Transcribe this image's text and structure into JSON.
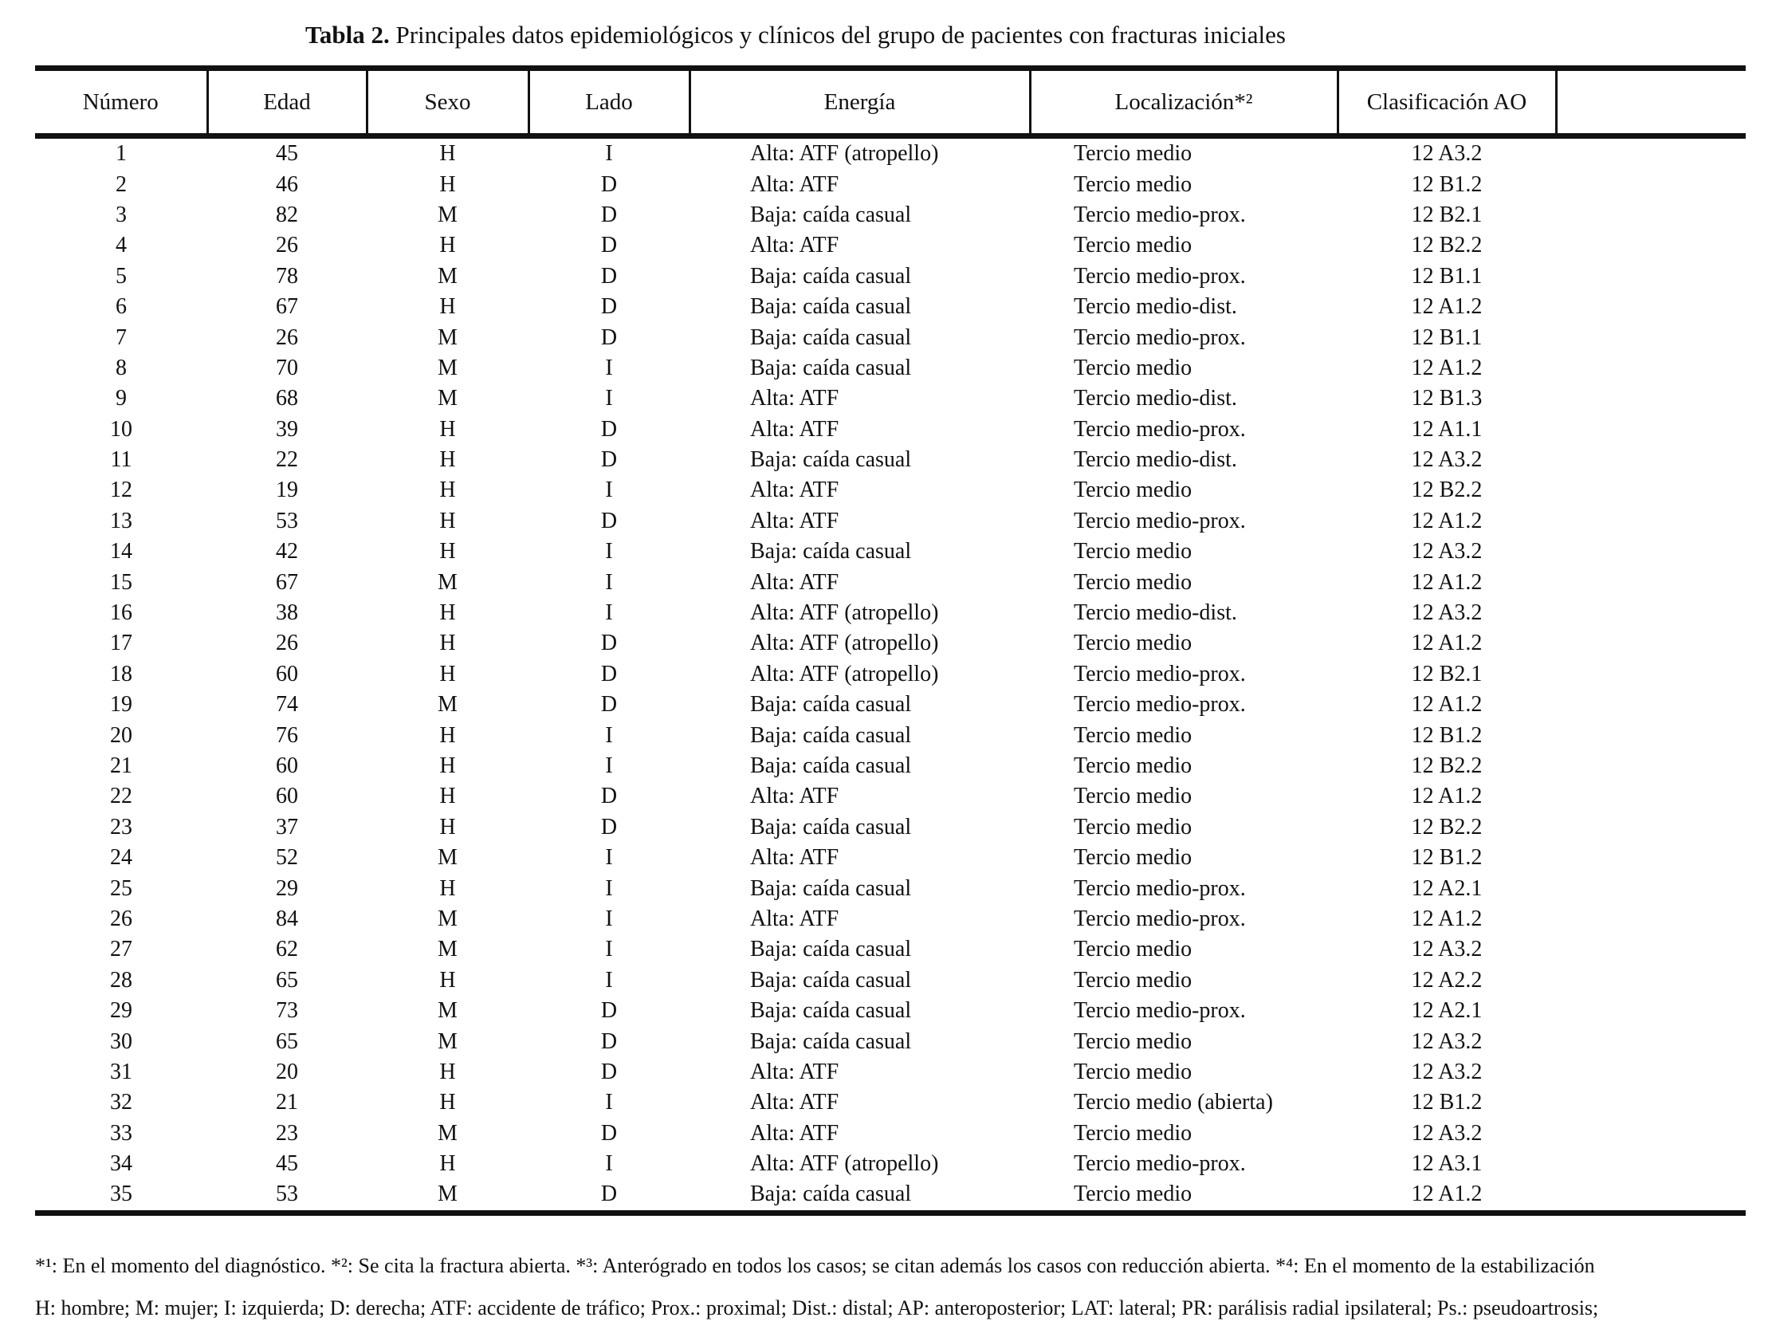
{
  "title": {
    "label": "Tabla 2.",
    "text": " Principales datos epidemiológicos y clínicos del grupo de pacientes con fracturas iniciales"
  },
  "table": {
    "columns": [
      "Número",
      "Edad",
      "Sexo",
      "Lado",
      "Energía",
      "Localización*²",
      "Clasificación AO",
      ""
    ],
    "rows": [
      [
        1,
        45,
        "H",
        "I",
        "Alta: ATF (atropello)",
        "Tercio medio",
        "12 A3.2",
        ""
      ],
      [
        2,
        46,
        "H",
        "D",
        "Alta: ATF",
        "Tercio medio",
        "12 B1.2",
        ""
      ],
      [
        3,
        82,
        "M",
        "D",
        "Baja: caída casual",
        "Tercio medio-prox.",
        "12 B2.1",
        ""
      ],
      [
        4,
        26,
        "H",
        "D",
        "Alta: ATF",
        "Tercio medio",
        "12 B2.2",
        ""
      ],
      [
        5,
        78,
        "M",
        "D",
        "Baja: caída casual",
        "Tercio medio-prox.",
        "12 B1.1",
        ""
      ],
      [
        6,
        67,
        "H",
        "D",
        "Baja: caída casual",
        "Tercio medio-dist.",
        "12 A1.2",
        ""
      ],
      [
        7,
        26,
        "M",
        "D",
        "Baja: caída casual",
        "Tercio medio-prox.",
        "12 B1.1",
        ""
      ],
      [
        8,
        70,
        "M",
        "I",
        "Baja: caída casual",
        "Tercio medio",
        "12 A1.2",
        ""
      ],
      [
        9,
        68,
        "M",
        "I",
        "Alta: ATF",
        "Tercio medio-dist.",
        "12 B1.3",
        ""
      ],
      [
        10,
        39,
        "H",
        "D",
        "Alta: ATF",
        "Tercio medio-prox.",
        "12 A1.1",
        ""
      ],
      [
        11,
        22,
        "H",
        "D",
        "Baja: caída casual",
        "Tercio medio-dist.",
        "12 A3.2",
        ""
      ],
      [
        12,
        19,
        "H",
        "I",
        "Alta: ATF",
        "Tercio medio",
        "12 B2.2",
        ""
      ],
      [
        13,
        53,
        "H",
        "D",
        "Alta: ATF",
        "Tercio medio-prox.",
        "12 A1.2",
        ""
      ],
      [
        14,
        42,
        "H",
        "I",
        "Baja: caída casual",
        "Tercio medio",
        "12 A3.2",
        ""
      ],
      [
        15,
        67,
        "M",
        "I",
        "Alta: ATF",
        "Tercio medio",
        "12 A1.2",
        ""
      ],
      [
        16,
        38,
        "H",
        "I",
        "Alta: ATF (atropello)",
        "Tercio medio-dist.",
        "12 A3.2",
        ""
      ],
      [
        17,
        26,
        "H",
        "D",
        "Alta: ATF (atropello)",
        "Tercio medio",
        "12 A1.2",
        ""
      ],
      [
        18,
        60,
        "H",
        "D",
        "Alta: ATF (atropello)",
        "Tercio medio-prox.",
        "12 B2.1",
        ""
      ],
      [
        19,
        74,
        "M",
        "D",
        "Baja: caída casual",
        "Tercio medio-prox.",
        "12 A1.2",
        ""
      ],
      [
        20,
        76,
        "H",
        "I",
        "Baja: caída casual",
        "Tercio medio",
        "12 B1.2",
        ""
      ],
      [
        21,
        60,
        "H",
        "I",
        "Baja: caída casual",
        "Tercio medio",
        "12 B2.2",
        ""
      ],
      [
        22,
        60,
        "H",
        "D",
        "Alta: ATF",
        "Tercio medio",
        "12 A1.2",
        ""
      ],
      [
        23,
        37,
        "H",
        "D",
        "Baja: caída casual",
        "Tercio medio",
        "12 B2.2",
        ""
      ],
      [
        24,
        52,
        "M",
        "I",
        "Alta: ATF",
        "Tercio medio",
        "12 B1.2",
        ""
      ],
      [
        25,
        29,
        "H",
        "I",
        "Baja: caída casual",
        "Tercio medio-prox.",
        "12 A2.1",
        ""
      ],
      [
        26,
        84,
        "M",
        "I",
        "Alta: ATF",
        "Tercio medio-prox.",
        "12 A1.2",
        ""
      ],
      [
        27,
        62,
        "M",
        "I",
        "Baja: caída casual",
        "Tercio medio",
        "12 A3.2",
        ""
      ],
      [
        28,
        65,
        "H",
        "I",
        "Baja: caída casual",
        "Tercio medio",
        "12 A2.2",
        ""
      ],
      [
        29,
        73,
        "M",
        "D",
        "Baja: caída casual",
        "Tercio medio-prox.",
        "12 A2.1",
        ""
      ],
      [
        30,
        65,
        "M",
        "D",
        "Baja: caída casual",
        "Tercio medio",
        "12 A3.2",
        ""
      ],
      [
        31,
        20,
        "H",
        "D",
        "Alta: ATF",
        "Tercio medio",
        "12 A3.2",
        ""
      ],
      [
        32,
        21,
        "H",
        "I",
        "Alta: ATF",
        "Tercio medio (abierta)",
        "12 B1.2",
        ""
      ],
      [
        33,
        23,
        "M",
        "D",
        "Alta: ATF",
        "Tercio medio",
        "12 A3.2",
        ""
      ],
      [
        34,
        45,
        "H",
        "I",
        "Alta: ATF (atropello)",
        "Tercio medio-prox.",
        "12 A3.1",
        ""
      ],
      [
        35,
        53,
        "M",
        "D",
        "Baja: caída casual",
        "Tercio medio",
        "12 A1.2",
        ""
      ]
    ]
  },
  "footnotes": [
    "*¹: En el momento del diagnóstico. *²: Se cita la fractura abierta. *³: Anterógrado en todos los casos; se citan además los casos con reducción abierta. *⁴: En el momento de la estabilización",
    "H: hombre; M: mujer; I: izquierda; D: derecha; ATF: accidente de tráfico; Prox.: proximal; Dist.: distal; AP: anteroposterior; LAT: lateral; PR: parálisis radial ipsilateral; Ps.: pseudoartrosis;"
  ]
}
